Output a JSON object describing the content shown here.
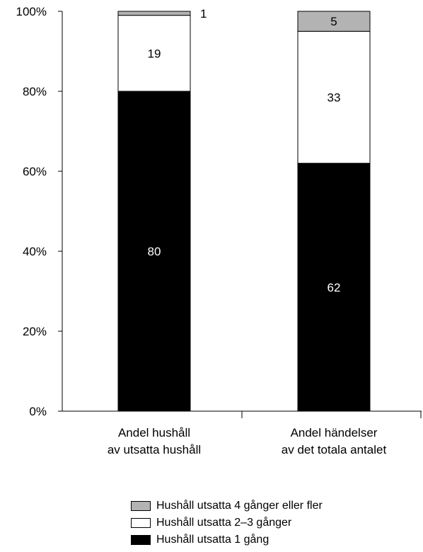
{
  "chart_data": {
    "type": "bar",
    "stacked": true,
    "categories": [
      [
        "Andel hushåll",
        "av utsatta hushåll"
      ],
      [
        "Andel händelser",
        "av det totala antalet"
      ]
    ],
    "series": [
      {
        "name": "Hushåll utsatta 1 gång",
        "color": "#000000",
        "label_color": "#ffffff",
        "values": [
          80,
          62
        ]
      },
      {
        "name": "Hushåll utsatta 2–3 gånger",
        "color": "#ffffff",
        "label_color": "#000000",
        "values": [
          19,
          33
        ]
      },
      {
        "name": "Hushåll utsatta 4 gånger eller fler",
        "color": "#b3b3b3",
        "label_color": "#000000",
        "values": [
          1,
          5
        ]
      }
    ],
    "ylim": [
      0,
      100
    ],
    "yticks": [
      "0%",
      "20%",
      "40%",
      "60%",
      "80%",
      "100%"
    ],
    "legend_order": [
      2,
      1,
      0
    ],
    "grid": false,
    "legend_position": "bottom"
  }
}
